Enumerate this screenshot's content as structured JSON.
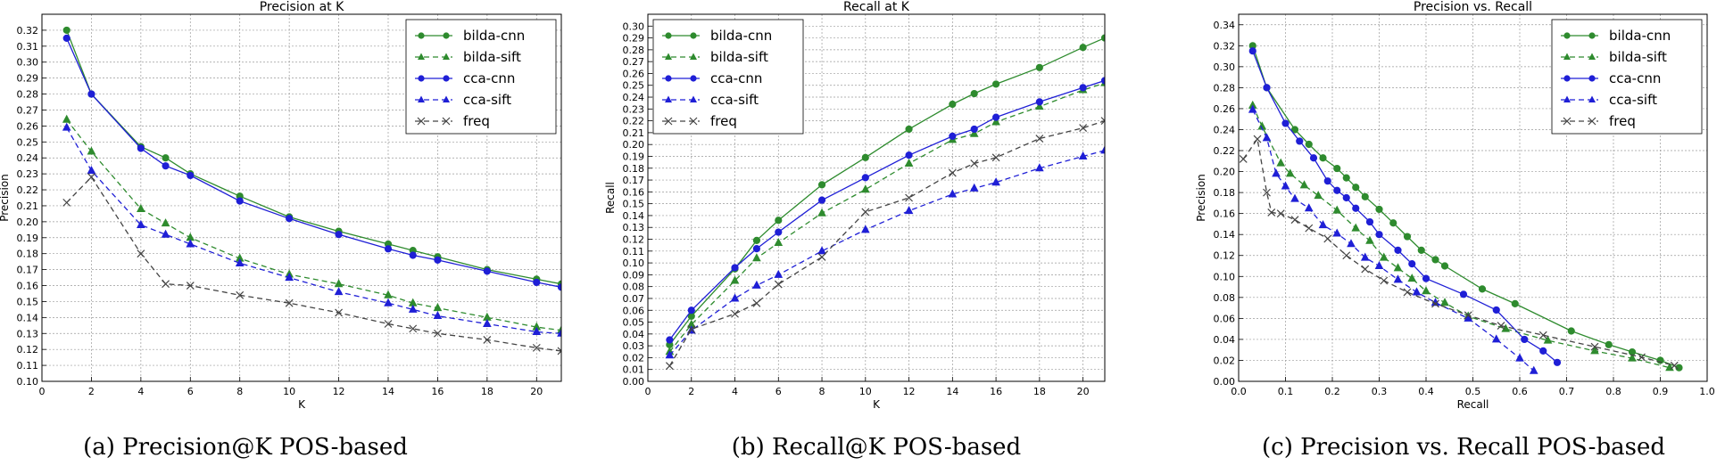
{
  "colors": {
    "bilda-cnn": "#2e8b2e",
    "bilda-sift": "#2e8b2e",
    "cca-cnn": "#1f1fd6",
    "cca-sift": "#1f1fd6",
    "freq": "#444444"
  },
  "chart_data": [
    {
      "type": "line",
      "title": "Precision at K",
      "xlabel": "K",
      "ylabel": "Precision",
      "caption": "(a) Precision@K POS-based",
      "xlim": [
        0,
        21
      ],
      "ylim": [
        0.1,
        0.33
      ],
      "xticks": [
        "0",
        "2",
        "4",
        "6",
        "8",
        "10",
        "12",
        "14",
        "16",
        "18",
        "20"
      ],
      "yticks": [
        "0.10",
        "0.11",
        "0.12",
        "0.13",
        "0.14",
        "0.15",
        "0.16",
        "0.17",
        "0.18",
        "0.19",
        "0.20",
        "0.21",
        "0.22",
        "0.23",
        "0.24",
        "0.25",
        "0.26",
        "0.27",
        "0.28",
        "0.29",
        "0.30",
        "0.31",
        "0.32"
      ],
      "grid": true,
      "legend_position": "top-right",
      "series": [
        {
          "name": "bilda-cnn",
          "style": "solid",
          "marker": "circle",
          "x": [
            1,
            2,
            4,
            5,
            6,
            8,
            10,
            12,
            14,
            15,
            16,
            18,
            20,
            21
          ],
          "y": [
            0.32,
            0.28,
            0.247,
            0.24,
            0.23,
            0.216,
            0.203,
            0.194,
            0.186,
            0.182,
            0.178,
            0.17,
            0.164,
            0.161
          ]
        },
        {
          "name": "bilda-sift",
          "style": "dashed",
          "marker": "triangle",
          "x": [
            1,
            2,
            4,
            5,
            6,
            8,
            10,
            12,
            14,
            15,
            16,
            18,
            20,
            21
          ],
          "y": [
            0.264,
            0.244,
            0.208,
            0.199,
            0.19,
            0.177,
            0.167,
            0.161,
            0.154,
            0.149,
            0.146,
            0.14,
            0.134,
            0.132
          ]
        },
        {
          "name": "cca-cnn",
          "style": "solid",
          "marker": "circle",
          "x": [
            1,
            2,
            4,
            5,
            6,
            8,
            10,
            12,
            14,
            15,
            16,
            18,
            20,
            21
          ],
          "y": [
            0.315,
            0.28,
            0.246,
            0.235,
            0.229,
            0.213,
            0.202,
            0.192,
            0.183,
            0.179,
            0.176,
            0.169,
            0.162,
            0.159
          ]
        },
        {
          "name": "cca-sift",
          "style": "dashed",
          "marker": "triangle",
          "x": [
            1,
            2,
            4,
            5,
            6,
            8,
            10,
            12,
            14,
            15,
            16,
            18,
            20,
            21
          ],
          "y": [
            0.259,
            0.232,
            0.198,
            0.192,
            0.186,
            0.174,
            0.165,
            0.156,
            0.149,
            0.145,
            0.141,
            0.136,
            0.131,
            0.13
          ]
        },
        {
          "name": "freq",
          "style": "dashed",
          "marker": "x",
          "x": [
            1,
            2,
            4,
            5,
            6,
            8,
            10,
            12,
            14,
            15,
            16,
            18,
            20,
            21
          ],
          "y": [
            0.212,
            0.228,
            0.18,
            0.161,
            0.16,
            0.154,
            0.149,
            0.143,
            0.136,
            0.133,
            0.13,
            0.126,
            0.121,
            0.119
          ]
        }
      ]
    },
    {
      "type": "line",
      "title": "Recall at K",
      "xlabel": "K",
      "ylabel": "Recall",
      "caption": "(b) Recall@K POS-based",
      "xlim": [
        0,
        21
      ],
      "ylim": [
        0.0,
        0.31
      ],
      "xticks": [
        "0",
        "2",
        "4",
        "6",
        "8",
        "10",
        "12",
        "14",
        "16",
        "18",
        "20"
      ],
      "yticks": [
        "0.00",
        "0.01",
        "0.02",
        "0.03",
        "0.04",
        "0.05",
        "0.06",
        "0.07",
        "0.08",
        "0.09",
        "0.10",
        "0.11",
        "0.12",
        "0.13",
        "0.14",
        "0.15",
        "0.16",
        "0.17",
        "0.18",
        "0.19",
        "0.20",
        "0.21",
        "0.22",
        "0.23",
        "0.24",
        "0.25",
        "0.26",
        "0.27",
        "0.28",
        "0.29",
        "0.30"
      ],
      "grid": true,
      "legend_position": "top-left",
      "series": [
        {
          "name": "bilda-cnn",
          "style": "solid",
          "marker": "circle",
          "x": [
            1,
            2,
            4,
            5,
            6,
            8,
            10,
            12,
            14,
            15,
            16,
            18,
            20,
            21
          ],
          "y": [
            0.031,
            0.055,
            0.095,
            0.119,
            0.136,
            0.166,
            0.189,
            0.213,
            0.234,
            0.243,
            0.251,
            0.265,
            0.282,
            0.29
          ]
        },
        {
          "name": "bilda-sift",
          "style": "dashed",
          "marker": "triangle",
          "x": [
            1,
            2,
            4,
            5,
            6,
            8,
            10,
            12,
            14,
            15,
            16,
            18,
            20,
            21
          ],
          "y": [
            0.025,
            0.048,
            0.085,
            0.104,
            0.117,
            0.142,
            0.162,
            0.184,
            0.204,
            0.209,
            0.219,
            0.232,
            0.246,
            0.252
          ]
        },
        {
          "name": "cca-cnn",
          "style": "solid",
          "marker": "circle",
          "x": [
            1,
            2,
            4,
            5,
            6,
            8,
            10,
            12,
            14,
            15,
            16,
            18,
            20,
            21
          ],
          "y": [
            0.035,
            0.06,
            0.096,
            0.112,
            0.126,
            0.153,
            0.172,
            0.191,
            0.207,
            0.213,
            0.223,
            0.236,
            0.248,
            0.254
          ]
        },
        {
          "name": "cca-sift",
          "style": "dashed",
          "marker": "triangle",
          "x": [
            1,
            2,
            4,
            5,
            6,
            8,
            10,
            12,
            14,
            15,
            16,
            18,
            20,
            21
          ],
          "y": [
            0.022,
            0.043,
            0.07,
            0.081,
            0.09,
            0.11,
            0.128,
            0.144,
            0.158,
            0.163,
            0.168,
            0.18,
            0.19,
            0.195
          ]
        },
        {
          "name": "freq",
          "style": "dashed",
          "marker": "x",
          "x": [
            1,
            2,
            4,
            5,
            6,
            8,
            10,
            12,
            14,
            15,
            16,
            18,
            20,
            21
          ],
          "y": [
            0.013,
            0.044,
            0.057,
            0.066,
            0.082,
            0.105,
            0.143,
            0.155,
            0.176,
            0.184,
            0.189,
            0.205,
            0.214,
            0.22
          ]
        }
      ]
    },
    {
      "type": "line",
      "title": "Precision vs. Recall",
      "xlabel": "Recall",
      "ylabel": "Precision",
      "caption": "(c) Precision vs. Recall POS-based",
      "xlim": [
        0.0,
        1.0
      ],
      "ylim": [
        0.0,
        0.35
      ],
      "xticks": [
        "0.0",
        "0.1",
        "0.2",
        "0.3",
        "0.4",
        "0.5",
        "0.6",
        "0.7",
        "0.8",
        "0.9",
        "1.0"
      ],
      "yticks": [
        "0.00",
        "0.02",
        "0.04",
        "0.06",
        "0.08",
        "0.10",
        "0.12",
        "0.14",
        "0.16",
        "0.18",
        "0.20",
        "0.22",
        "0.24",
        "0.26",
        "0.28",
        "0.30",
        "0.32",
        "0.34"
      ],
      "grid": true,
      "legend_position": "top-right",
      "series": [
        {
          "name": "bilda-cnn",
          "style": "solid",
          "marker": "circle",
          "x": [
            0.03,
            0.06,
            0.12,
            0.15,
            0.18,
            0.21,
            0.23,
            0.25,
            0.27,
            0.3,
            0.33,
            0.36,
            0.39,
            0.42,
            0.44,
            0.52,
            0.59,
            0.71,
            0.79,
            0.84,
            0.9,
            0.94
          ],
          "y": [
            0.32,
            0.28,
            0.24,
            0.226,
            0.213,
            0.203,
            0.194,
            0.185,
            0.176,
            0.164,
            0.151,
            0.138,
            0.125,
            0.116,
            0.11,
            0.088,
            0.074,
            0.048,
            0.035,
            0.028,
            0.02,
            0.013
          ]
        },
        {
          "name": "bilda-sift",
          "style": "dashed",
          "marker": "triangle",
          "x": [
            0.03,
            0.05,
            0.09,
            0.11,
            0.14,
            0.17,
            0.21,
            0.25,
            0.28,
            0.31,
            0.34,
            0.37,
            0.4,
            0.44,
            0.49,
            0.57,
            0.66,
            0.76,
            0.84,
            0.92
          ],
          "y": [
            0.263,
            0.243,
            0.208,
            0.198,
            0.187,
            0.177,
            0.163,
            0.146,
            0.134,
            0.118,
            0.108,
            0.098,
            0.086,
            0.075,
            0.062,
            0.05,
            0.039,
            0.029,
            0.022,
            0.013
          ]
        },
        {
          "name": "cca-cnn",
          "style": "solid",
          "marker": "circle",
          "x": [
            0.03,
            0.06,
            0.1,
            0.13,
            0.16,
            0.19,
            0.21,
            0.23,
            0.25,
            0.28,
            0.3,
            0.34,
            0.37,
            0.4,
            0.48,
            0.55,
            0.61,
            0.65,
            0.68
          ],
          "y": [
            0.315,
            0.28,
            0.246,
            0.229,
            0.213,
            0.191,
            0.182,
            0.175,
            0.165,
            0.152,
            0.14,
            0.125,
            0.112,
            0.098,
            0.083,
            0.068,
            0.04,
            0.029,
            0.018
          ]
        },
        {
          "name": "cca-sift",
          "style": "dashed",
          "marker": "triangle",
          "x": [
            0.03,
            0.06,
            0.08,
            0.1,
            0.12,
            0.15,
            0.18,
            0.21,
            0.24,
            0.27,
            0.3,
            0.34,
            0.38,
            0.42,
            0.49,
            0.55,
            0.6,
            0.63
          ],
          "y": [
            0.259,
            0.232,
            0.198,
            0.186,
            0.174,
            0.165,
            0.149,
            0.141,
            0.131,
            0.118,
            0.11,
            0.097,
            0.085,
            0.075,
            0.06,
            0.04,
            0.022,
            0.01
          ]
        },
        {
          "name": "freq",
          "style": "dashed",
          "marker": "x",
          "x": [
            0.01,
            0.04,
            0.06,
            0.07,
            0.09,
            0.12,
            0.15,
            0.19,
            0.23,
            0.27,
            0.31,
            0.36,
            0.42,
            0.49,
            0.56,
            0.65,
            0.76,
            0.86,
            0.93
          ],
          "y": [
            0.212,
            0.231,
            0.18,
            0.161,
            0.16,
            0.154,
            0.146,
            0.136,
            0.12,
            0.107,
            0.096,
            0.085,
            0.074,
            0.063,
            0.053,
            0.044,
            0.033,
            0.023,
            0.015
          ]
        }
      ]
    }
  ]
}
